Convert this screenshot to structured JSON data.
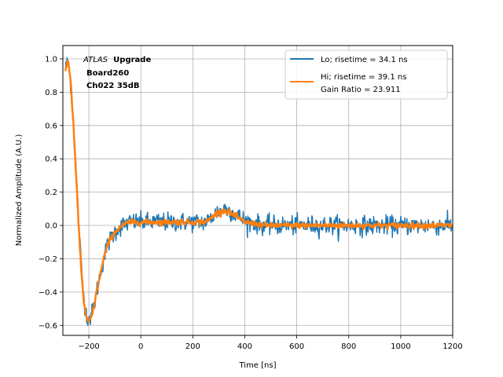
{
  "chart_data": {
    "type": "line",
    "xlabel": "Time [ns]",
    "ylabel": "Normalized Amplitude (A.U.)",
    "xlim": [
      -300,
      1200
    ],
    "ylim": [
      -0.66,
      1.08
    ],
    "xticks": [
      -200,
      0,
      200,
      400,
      600,
      800,
      1000,
      1200
    ],
    "xtick_labels": [
      "−200",
      "0",
      "200",
      "400",
      "600",
      "800",
      "1000",
      "1200"
    ],
    "yticks": [
      -0.6,
      -0.4,
      -0.2,
      0.0,
      0.2,
      0.4,
      0.6,
      0.8,
      1.0
    ],
    "ytick_labels": [
      "−0.6",
      "−0.4",
      "−0.2",
      "0.0",
      "0.2",
      "0.4",
      "0.6",
      "0.8",
      "1.0"
    ],
    "grid": true,
    "legend_position": "top-right",
    "annotation": {
      "line1_italic": "ATLAS",
      "line1_bold": "Upgrade",
      "line2": "Board260",
      "line3": "Ch022 35dB"
    },
    "series": [
      {
        "name": "Lo; risetime = 34.1 ns",
        "color": "#1f77b4",
        "x": [
          -290,
          -280,
          -270,
          -260,
          -250,
          -240,
          -230,
          -220,
          -210,
          -200,
          -190,
          -180,
          -170,
          -160,
          -150,
          -140,
          -130,
          -120,
          -100,
          -80,
          -60,
          -40,
          -20,
          0,
          40,
          80,
          120,
          160,
          200,
          240,
          260,
          280,
          300,
          320,
          340,
          360,
          380,
          400,
          440,
          480,
          520,
          560,
          600,
          640,
          680,
          720,
          760,
          800,
          840,
          880,
          920,
          960,
          1000,
          1040,
          1080,
          1120,
          1160,
          1200
        ],
        "y": [
          0.95,
          0.98,
          0.85,
          0.62,
          0.35,
          0.05,
          -0.22,
          -0.42,
          -0.53,
          -0.56,
          -0.54,
          -0.48,
          -0.4,
          -0.32,
          -0.25,
          -0.18,
          -0.13,
          -0.09,
          -0.04,
          -0.01,
          0.01,
          0.02,
          0.02,
          0.02,
          0.02,
          0.02,
          0.02,
          0.02,
          0.02,
          0.02,
          0.03,
          0.06,
          0.09,
          0.1,
          0.09,
          0.07,
          0.05,
          0.03,
          0.01,
          0.0,
          0.0,
          0.0,
          0.0,
          0.0,
          0.0,
          0.0,
          0.0,
          0.0,
          0.0,
          0.0,
          0.0,
          0.0,
          0.0,
          0.0,
          0.0,
          0.0,
          0.0,
          0.0
        ],
        "noise_sd": 0.028
      },
      {
        "name": "Hi; risetime = 39.1 ns\n Gain Ratio = 23.911",
        "color": "#ff7f0e",
        "x": [
          -290,
          -280,
          -270,
          -260,
          -250,
          -240,
          -230,
          -220,
          -210,
          -200,
          -190,
          -180,
          -170,
          -160,
          -150,
          -140,
          -130,
          -120,
          -100,
          -80,
          -60,
          -40,
          -20,
          0,
          40,
          80,
          120,
          160,
          200,
          240,
          260,
          280,
          300,
          320,
          340,
          360,
          380,
          400,
          440,
          480,
          520,
          560,
          600,
          640,
          680,
          720,
          760,
          800,
          840,
          880,
          920,
          960,
          1000,
          1040,
          1080,
          1120,
          1160,
          1200
        ],
        "y": [
          0.93,
          1.0,
          0.86,
          0.62,
          0.33,
          0.02,
          -0.25,
          -0.45,
          -0.56,
          -0.58,
          -0.55,
          -0.48,
          -0.4,
          -0.32,
          -0.25,
          -0.18,
          -0.13,
          -0.09,
          -0.04,
          -0.01,
          0.01,
          0.02,
          0.02,
          0.02,
          0.02,
          0.02,
          0.02,
          0.02,
          0.02,
          0.02,
          0.03,
          0.06,
          0.08,
          0.09,
          0.08,
          0.06,
          0.04,
          0.02,
          0.01,
          0.0,
          0.0,
          0.0,
          0.0,
          0.0,
          0.0,
          0.0,
          0.0,
          0.0,
          0.0,
          0.0,
          0.0,
          0.0,
          0.0,
          0.0,
          0.0,
          0.0,
          0.0,
          0.0
        ],
        "noise_sd": 0.008
      }
    ]
  }
}
